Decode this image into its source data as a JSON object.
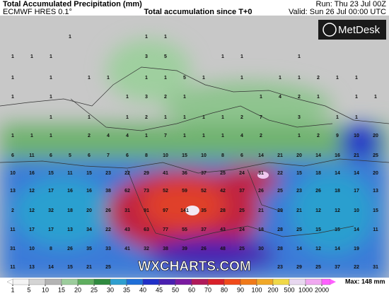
{
  "header": {
    "title": "Total Accumulated Precipitation (mm)",
    "model": "ECMWF HRES 0.1°",
    "subtitle": "Total accumulation since T+0",
    "run": "Run: Thu 23 Jul 00Z",
    "valid": "Valid: Sun 26 Jul 00:00 UTC"
  },
  "logo": "MetDesk",
  "watermark": "WXCHARTS.COM",
  "map": {
    "rows": [
      [
        null,
        null,
        null,
        1,
        null,
        null,
        null,
        1,
        1,
        null,
        null,
        null,
        null,
        null,
        null,
        null,
        null,
        null,
        null,
        null
      ],
      [
        1,
        1,
        1,
        null,
        null,
        null,
        null,
        3,
        5,
        null,
        null,
        1,
        1,
        null,
        null,
        1,
        null,
        null,
        null,
        null
      ],
      [
        1,
        null,
        1,
        null,
        1,
        1,
        null,
        1,
        1,
        5,
        1,
        null,
        1,
        null,
        1,
        1,
        2,
        1,
        1,
        null
      ],
      [
        1,
        null,
        1,
        null,
        null,
        null,
        1,
        3,
        2,
        1,
        null,
        null,
        null,
        1,
        4,
        2,
        1,
        null,
        1,
        1
      ],
      [
        null,
        null,
        1,
        null,
        1,
        null,
        1,
        2,
        1,
        1,
        1,
        1,
        2,
        7,
        null,
        3,
        null,
        1,
        1,
        null
      ],
      [
        1,
        1,
        1,
        null,
        2,
        4,
        4,
        1,
        7,
        1,
        1,
        1,
        4,
        2,
        null,
        1,
        2,
        9,
        10,
        20
      ],
      [
        6,
        11,
        6,
        5,
        6,
        7,
        6,
        8,
        10,
        15,
        10,
        8,
        6,
        14,
        21,
        20,
        14,
        16,
        21,
        25
      ],
      [
        10,
        16,
        15,
        11,
        15,
        23,
        22,
        29,
        41,
        36,
        37,
        25,
        24,
        31,
        22,
        15,
        18,
        14,
        14,
        20
      ],
      [
        13,
        12,
        17,
        16,
        16,
        38,
        62,
        73,
        52,
        59,
        52,
        42,
        37,
        26,
        25,
        23,
        26,
        18,
        17,
        13
      ],
      [
        2,
        12,
        32,
        18,
        20,
        26,
        31,
        91,
        97,
        141,
        35,
        28,
        25,
        21,
        29,
        21,
        12,
        12,
        10,
        15
      ],
      [
        11,
        17,
        17,
        13,
        34,
        22,
        43,
        63,
        77,
        55,
        37,
        43,
        24,
        18,
        28,
        25,
        15,
        15,
        14,
        11
      ],
      [
        31,
        10,
        8,
        26,
        35,
        33,
        41,
        32,
        38,
        39,
        26,
        48,
        25,
        30,
        28,
        14,
        12,
        14,
        19,
        null
      ],
      [
        11,
        13,
        14,
        15,
        21,
        25,
        null,
        null,
        null,
        null,
        null,
        null,
        null,
        null,
        23,
        29,
        25,
        37,
        22,
        31
      ]
    ]
  },
  "legend": {
    "ticks": [
      1,
      5,
      10,
      15,
      20,
      25,
      30,
      35,
      40,
      45,
      50,
      60,
      70,
      80,
      90,
      100,
      200,
      500,
      1000,
      2000
    ],
    "colors": [
      "#f4f4f4",
      "#d4d4d4",
      "#b4b4b4",
      "#9ccc9c",
      "#5fae5f",
      "#2f8a3f",
      "#2f9fcf",
      "#1f6fd8",
      "#2030c8",
      "#4a20b0",
      "#7a1aa0",
      "#b01a5a",
      "#d8202a",
      "#f04a1a",
      "#f07a1a",
      "#f0a828",
      "#f0d848",
      "#e8d8f0",
      "#f0a8f0",
      "#ff60ff"
    ],
    "max": "Max: 148 mm"
  }
}
